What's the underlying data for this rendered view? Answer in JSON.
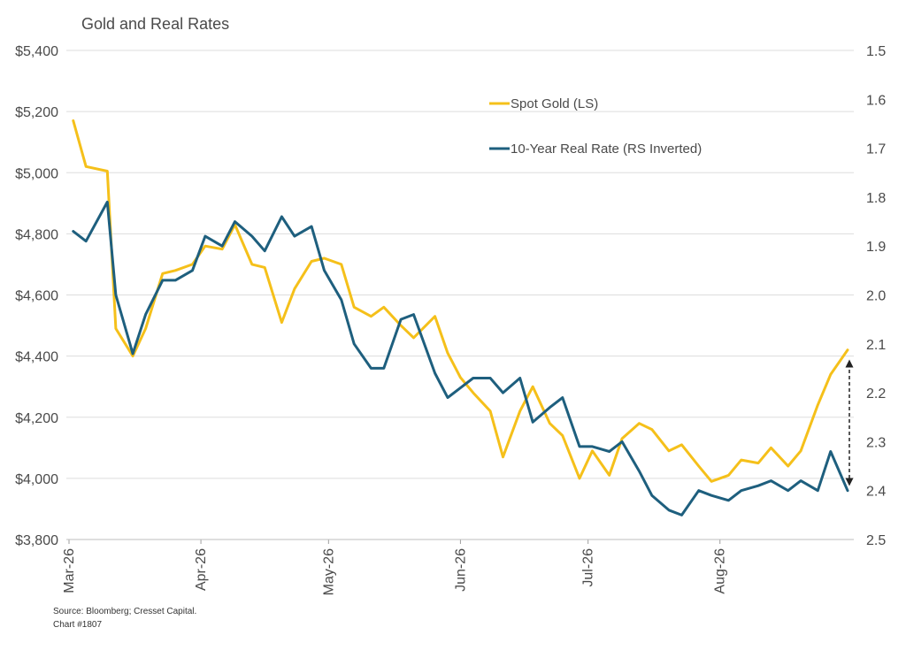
{
  "chart_data": {
    "type": "line",
    "title": "Gold and Real Rates",
    "xlabel": "",
    "ylabel": "",
    "x_tick_labels": [
      "Mar-26",
      "Apr-26",
      "May-26",
      "Jun-26",
      "Jul-26",
      "Aug-26"
    ],
    "y_left": {
      "range": [
        3800,
        5400
      ],
      "ticks": [
        5400,
        5200,
        5000,
        4800,
        4600,
        4400,
        4200,
        4000,
        3800
      ],
      "tick_labels": [
        "$5,400",
        "$5,200",
        "$5,000",
        "$4,800",
        "$4,600",
        "$4,400",
        "$4,200",
        "$4,000",
        "$3,800"
      ]
    },
    "y_right": {
      "range": [
        1.5,
        2.5
      ],
      "inverted": true,
      "ticks": [
        1.5,
        1.6,
        1.7,
        1.8,
        1.9,
        2.0,
        2.1,
        2.2,
        2.3,
        2.4,
        2.5
      ],
      "tick_labels": [
        "1.5",
        "1.6",
        "1.7",
        "1.8",
        "1.9",
        "2.0",
        "2.1",
        "2.2",
        "2.3",
        "2.4",
        "2.5"
      ]
    },
    "grid": "horizontal",
    "legend_position": "top-right",
    "series": [
      {
        "name": "Spot Gold (LS)",
        "axis": "left",
        "color": "#F5C01A",
        "x": [
          "2026-03-02",
          "2026-03-05",
          "2026-03-10",
          "2026-03-12",
          "2026-03-16",
          "2026-03-19",
          "2026-03-23",
          "2026-03-26",
          "2026-03-30",
          "2026-04-02",
          "2026-04-06",
          "2026-04-09",
          "2026-04-13",
          "2026-04-16",
          "2026-04-20",
          "2026-04-23",
          "2026-04-27",
          "2026-04-30",
          "2026-05-04",
          "2026-05-07",
          "2026-05-11",
          "2026-05-14",
          "2026-05-18",
          "2026-05-21",
          "2026-05-26",
          "2026-05-29",
          "2026-06-01",
          "2026-06-04",
          "2026-06-08",
          "2026-06-11",
          "2026-06-15",
          "2026-06-18",
          "2026-06-22",
          "2026-06-25",
          "2026-06-29",
          "2026-07-02",
          "2026-07-06",
          "2026-07-09",
          "2026-07-13",
          "2026-07-16",
          "2026-07-20",
          "2026-07-23",
          "2026-07-27",
          "2026-07-30",
          "2026-08-03",
          "2026-08-06",
          "2026-08-10",
          "2026-08-13",
          "2026-08-17",
          "2026-08-20",
          "2026-08-24",
          "2026-08-27",
          "2026-08-31"
        ],
        "values": [
          5170,
          5020,
          5005,
          4490,
          4400,
          4490,
          4670,
          4680,
          4700,
          4760,
          4750,
          4830,
          4700,
          4690,
          4510,
          4620,
          4710,
          4720,
          4700,
          4560,
          4530,
          4560,
          4500,
          4460,
          4530,
          4410,
          4330,
          4280,
          4220,
          4070,
          4220,
          4300,
          4180,
          4140,
          4000,
          4090,
          4010,
          4130,
          4180,
          4160,
          4090,
          4110,
          4040,
          3990,
          4010,
          4060,
          4050,
          4100,
          4040,
          4090,
          4240,
          4340,
          4420
        ]
      },
      {
        "name": "10-Year Real Rate (RS Inverted)",
        "axis": "right",
        "color": "#1E5F7E",
        "x": [
          "2026-03-02",
          "2026-03-05",
          "2026-03-10",
          "2026-03-12",
          "2026-03-16",
          "2026-03-19",
          "2026-03-23",
          "2026-03-26",
          "2026-03-30",
          "2026-04-02",
          "2026-04-06",
          "2026-04-09",
          "2026-04-13",
          "2026-04-16",
          "2026-04-20",
          "2026-04-23",
          "2026-04-27",
          "2026-04-30",
          "2026-05-04",
          "2026-05-07",
          "2026-05-11",
          "2026-05-14",
          "2026-05-18",
          "2026-05-21",
          "2026-05-26",
          "2026-05-29",
          "2026-06-01",
          "2026-06-04",
          "2026-06-08",
          "2026-06-11",
          "2026-06-15",
          "2026-06-18",
          "2026-06-22",
          "2026-06-25",
          "2026-06-29",
          "2026-07-02",
          "2026-07-06",
          "2026-07-09",
          "2026-07-13",
          "2026-07-16",
          "2026-07-20",
          "2026-07-23",
          "2026-07-27",
          "2026-07-30",
          "2026-08-03",
          "2026-08-06",
          "2026-08-10",
          "2026-08-13",
          "2026-08-17",
          "2026-08-20",
          "2026-08-24",
          "2026-08-27",
          "2026-08-31"
        ],
        "values": [
          1.87,
          1.89,
          1.81,
          2.0,
          2.12,
          2.04,
          1.97,
          1.97,
          1.95,
          1.88,
          1.9,
          1.85,
          1.88,
          1.91,
          1.84,
          1.88,
          1.86,
          1.95,
          2.01,
          2.1,
          2.15,
          2.15,
          2.05,
          2.04,
          2.16,
          2.21,
          2.19,
          2.17,
          2.17,
          2.2,
          2.17,
          2.26,
          2.23,
          2.21,
          2.31,
          2.31,
          2.32,
          2.3,
          2.36,
          2.41,
          2.44,
          2.45,
          2.4,
          2.41,
          2.42,
          2.4,
          2.39,
          2.38,
          2.4,
          2.38,
          2.4,
          2.32,
          2.4
        ]
      }
    ],
    "annotations": [
      {
        "type": "double-arrow",
        "style": "dashed",
        "x": "2026-08-31",
        "y_left_from": 4410,
        "y_left_to": 3990
      }
    ],
    "source_note": "Source: Bloomberg; Cresset Capital.",
    "chart_number": "Chart #1807"
  }
}
